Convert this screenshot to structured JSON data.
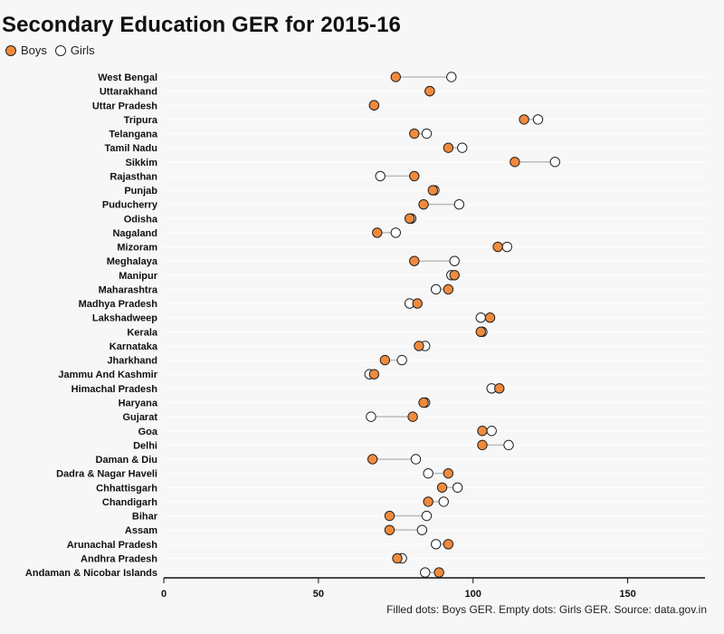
{
  "chart_data": {
    "type": "dot-range",
    "title": "Secondary Education GER for 2015-16",
    "legend": {
      "placement": "top-left",
      "items": [
        {
          "key": "boys",
          "label": "Boys",
          "marker": "filled"
        },
        {
          "key": "girls",
          "label": "Girls",
          "marker": "empty"
        }
      ]
    },
    "caption": "Filled dots: Boys GER. Empty dots: Girls GER. Source: data.gov.in",
    "xlim": [
      0,
      175
    ],
    "xticks": [
      0,
      50,
      100,
      150
    ],
    "grid": true,
    "colors": {
      "boys": "#f08a3c",
      "girls": "#ffffff",
      "connector": "#bbbbbb",
      "axis": "#111111",
      "grid": "#ffffff"
    },
    "categories": [
      "West Bengal",
      "Uttarakhand",
      "Uttar Pradesh",
      "Tripura",
      "Telangana",
      "Tamil Nadu",
      "Sikkim",
      "Rajasthan",
      "Punjab",
      "Puducherry",
      "Odisha",
      "Nagaland",
      "Mizoram",
      "Meghalaya",
      "Manipur",
      "Maharashtra",
      "Madhya Pradesh",
      "Lakshadweep",
      "Kerala",
      "Karnataka",
      "Jharkhand",
      "Jammu And Kashmir",
      "Himachal Pradesh",
      "Haryana",
      "Gujarat",
      "Goa",
      "Delhi",
      "Daman & Diu",
      "Dadra & Nagar Haveli",
      "Chhattisgarh",
      "Chandigarh",
      "Bihar",
      "Assam",
      "Arunachal Pradesh",
      "Andhra Pradesh",
      "Andaman & Nicobar Islands"
    ],
    "series": [
      {
        "name": "Boys",
        "values": [
          75,
          86,
          68,
          116.5,
          81,
          92,
          113.5,
          81,
          87,
          84,
          79.5,
          69,
          108,
          81,
          94,
          92,
          82,
          105.5,
          102.5,
          82.5,
          71.5,
          68,
          108.5,
          84,
          80.5,
          103,
          103,
          67.5,
          92,
          90,
          85.5,
          73,
          73,
          92,
          75.5,
          89
        ]
      },
      {
        "name": "Girls",
        "values": [
          93,
          86,
          68,
          121,
          85,
          96.5,
          126.5,
          70,
          87.5,
          95.5,
          80,
          75,
          111,
          94,
          93,
          88,
          79.5,
          102.5,
          103,
          84.5,
          77,
          66.5,
          106,
          84.5,
          67,
          106,
          111.5,
          81.5,
          85.5,
          95,
          90.5,
          85,
          83.5,
          88,
          77,
          84.5
        ]
      }
    ]
  }
}
